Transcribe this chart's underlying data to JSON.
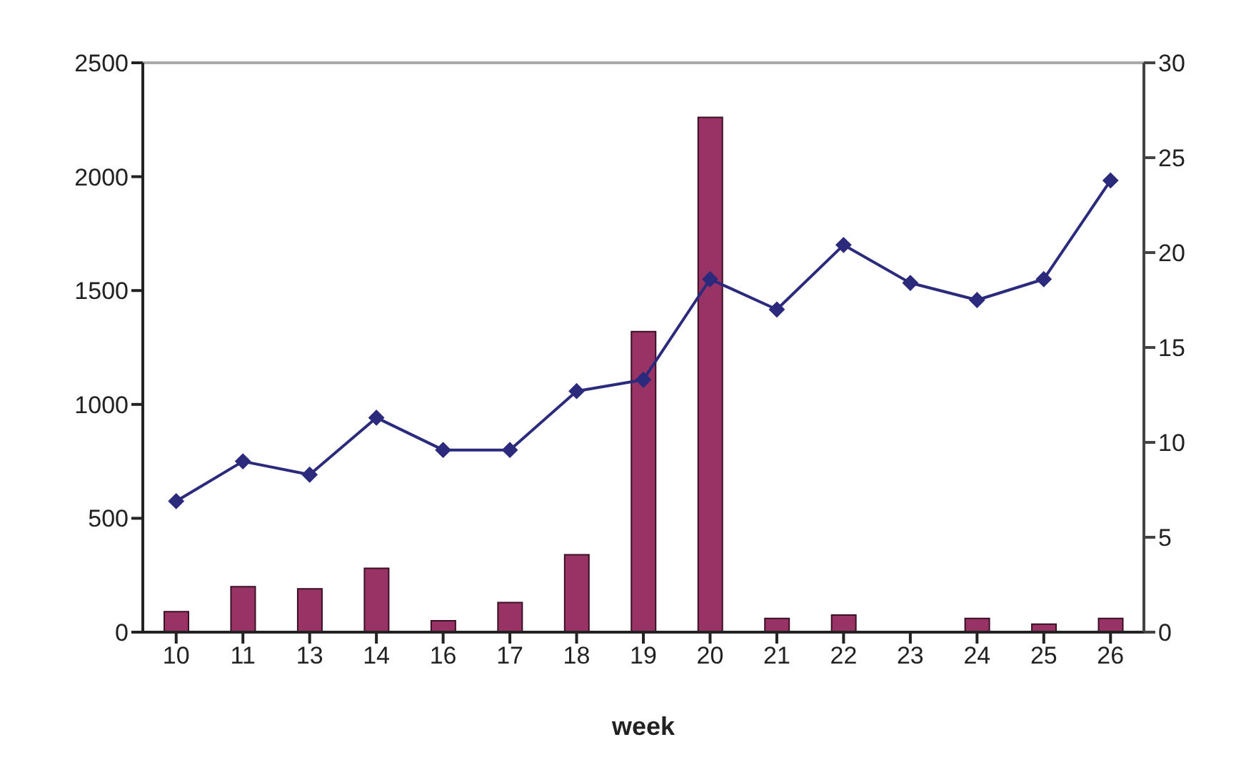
{
  "chart_data": {
    "type": "bar",
    "xlabel": "week",
    "categories": [
      "10",
      "11",
      "13",
      "14",
      "16",
      "17",
      "18",
      "19",
      "20",
      "21",
      "22",
      "23",
      "24",
      "25",
      "26"
    ],
    "series": [
      {
        "color": "#993366",
        "values": [
          90,
          200,
          190,
          280,
          50,
          130,
          340,
          1320,
          2260,
          60,
          75,
          0,
          60,
          35,
          60
        ]
      },
      {
        "type": "line",
        "axis": "y2",
        "color": "#2b2a7c",
        "marker": "diamond",
        "values": [
          6.9,
          9.0,
          8.3,
          11.3,
          9.6,
          9.6,
          12.7,
          13.3,
          18.6,
          17.0,
          20.4,
          18.4,
          17.5,
          18.6,
          23.8
        ]
      }
    ],
    "ylim": [
      0,
      2500
    ],
    "yticks": [
      0,
      500,
      1000,
      1500,
      2000,
      2500
    ],
    "y2lim": [
      0,
      30
    ],
    "y2ticks": [
      0,
      5,
      10,
      15,
      20,
      25,
      30
    ],
    "grid": false,
    "legend": false
  }
}
